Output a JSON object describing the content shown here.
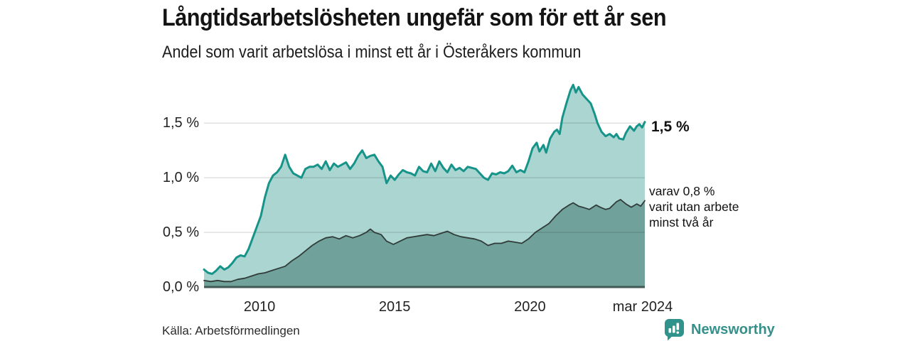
{
  "header": {
    "title": "Långtidsarbetslösheten ungefär som för ett år sen",
    "subtitle": "Andel som varit arbetslösa i minst ett år i Österåkers kommun"
  },
  "annotations": {
    "latest_total": "1,5 %",
    "secondary": "varav 0,8 %\nvarit utan arbete\nminst två år"
  },
  "footer": {
    "source": "Källa: Arbetsförmedlingen",
    "brand": "Newsworthy"
  },
  "colors": {
    "accent_teal": "#17948a",
    "light_fill": "#abd5d0",
    "dark_fill": "#70a19b",
    "dark_line": "#303c3a",
    "axis_line": "#415a56",
    "gridline": "rgba(0,0,0,0.12)",
    "brand_teal": "#2f938c",
    "text": "#161616"
  },
  "chart_data": {
    "type": "area",
    "title": "Långtidsarbetslösheten ungefär som för ett år sen",
    "subtitle": "Andel som varit arbetslösa i minst ett år i Österåkers kommun",
    "xlabel": "",
    "ylabel": "",
    "unit": "%",
    "xlim": [
      2007.95,
      2024.25
    ],
    "ylim": [
      0,
      1.95
    ],
    "grid": "horizontal",
    "legend_position": "none",
    "x_ticks": [
      {
        "label": "2010",
        "x": 2010
      },
      {
        "label": "2015",
        "x": 2015
      },
      {
        "label": "2020",
        "x": 2020
      },
      {
        "label": "mar 2024",
        "x": 2024.17
      }
    ],
    "y_ticks": [
      {
        "label": "0,0 %",
        "value": 0.0
      },
      {
        "label": "0,5 %",
        "value": 0.5
      },
      {
        "label": "1,0 %",
        "value": 1.0
      },
      {
        "label": "1,5 %",
        "value": 1.5
      }
    ],
    "series": [
      {
        "name": "Andel arbetslösa minst ett år",
        "latest_value": 1.5,
        "line_color": "#17948a",
        "fill_color": "#abd5d0",
        "line_width": 3,
        "points": [
          [
            2007.95,
            0.16
          ],
          [
            2008.1,
            0.13
          ],
          [
            2008.25,
            0.12
          ],
          [
            2008.4,
            0.15
          ],
          [
            2008.55,
            0.19
          ],
          [
            2008.7,
            0.16
          ],
          [
            2008.85,
            0.18
          ],
          [
            2009.0,
            0.22
          ],
          [
            2009.15,
            0.27
          ],
          [
            2009.3,
            0.29
          ],
          [
            2009.45,
            0.28
          ],
          [
            2009.6,
            0.35
          ],
          [
            2009.75,
            0.45
          ],
          [
            2009.9,
            0.55
          ],
          [
            2010.05,
            0.65
          ],
          [
            2010.2,
            0.82
          ],
          [
            2010.35,
            0.95
          ],
          [
            2010.5,
            1.02
          ],
          [
            2010.65,
            1.05
          ],
          [
            2010.8,
            1.1
          ],
          [
            2010.95,
            1.21
          ],
          [
            2011.1,
            1.1
          ],
          [
            2011.25,
            1.04
          ],
          [
            2011.4,
            1.02
          ],
          [
            2011.55,
            1.0
          ],
          [
            2011.7,
            1.08
          ],
          [
            2011.85,
            1.1
          ],
          [
            2012.0,
            1.1
          ],
          [
            2012.15,
            1.12
          ],
          [
            2012.3,
            1.08
          ],
          [
            2012.45,
            1.15
          ],
          [
            2012.6,
            1.07
          ],
          [
            2012.75,
            1.13
          ],
          [
            2012.9,
            1.1
          ],
          [
            2013.05,
            1.12
          ],
          [
            2013.2,
            1.14
          ],
          [
            2013.35,
            1.08
          ],
          [
            2013.5,
            1.13
          ],
          [
            2013.65,
            1.2
          ],
          [
            2013.8,
            1.25
          ],
          [
            2013.95,
            1.18
          ],
          [
            2014.1,
            1.2
          ],
          [
            2014.25,
            1.21
          ],
          [
            2014.4,
            1.15
          ],
          [
            2014.55,
            1.1
          ],
          [
            2014.7,
            0.95
          ],
          [
            2014.85,
            1.02
          ],
          [
            2015.0,
            0.98
          ],
          [
            2015.15,
            1.03
          ],
          [
            2015.3,
            1.07
          ],
          [
            2015.45,
            1.05
          ],
          [
            2015.6,
            1.04
          ],
          [
            2015.75,
            1.02
          ],
          [
            2015.9,
            1.1
          ],
          [
            2016.05,
            1.06
          ],
          [
            2016.2,
            1.05
          ],
          [
            2016.35,
            1.13
          ],
          [
            2016.5,
            1.06
          ],
          [
            2016.65,
            1.15
          ],
          [
            2016.8,
            1.09
          ],
          [
            2016.95,
            1.05
          ],
          [
            2017.1,
            1.12
          ],
          [
            2017.25,
            1.07
          ],
          [
            2017.4,
            1.09
          ],
          [
            2017.55,
            1.06
          ],
          [
            2017.7,
            1.1
          ],
          [
            2017.85,
            1.09
          ],
          [
            2018.0,
            1.08
          ],
          [
            2018.15,
            1.04
          ],
          [
            2018.3,
            1.0
          ],
          [
            2018.45,
            0.98
          ],
          [
            2018.6,
            1.04
          ],
          [
            2018.75,
            1.03
          ],
          [
            2018.9,
            1.05
          ],
          [
            2019.05,
            1.04
          ],
          [
            2019.2,
            1.06
          ],
          [
            2019.35,
            1.11
          ],
          [
            2019.5,
            1.05
          ],
          [
            2019.65,
            1.07
          ],
          [
            2019.8,
            1.05
          ],
          [
            2019.95,
            1.15
          ],
          [
            2020.1,
            1.27
          ],
          [
            2020.25,
            1.32
          ],
          [
            2020.35,
            1.24
          ],
          [
            2020.5,
            1.3
          ],
          [
            2020.6,
            1.23
          ],
          [
            2020.75,
            1.36
          ],
          [
            2020.9,
            1.42
          ],
          [
            2021.0,
            1.44
          ],
          [
            2021.1,
            1.4
          ],
          [
            2021.2,
            1.55
          ],
          [
            2021.35,
            1.68
          ],
          [
            2021.5,
            1.8
          ],
          [
            2021.6,
            1.85
          ],
          [
            2021.7,
            1.78
          ],
          [
            2021.8,
            1.83
          ],
          [
            2021.95,
            1.76
          ],
          [
            2022.1,
            1.72
          ],
          [
            2022.25,
            1.68
          ],
          [
            2022.4,
            1.58
          ],
          [
            2022.5,
            1.5
          ],
          [
            2022.65,
            1.42
          ],
          [
            2022.8,
            1.38
          ],
          [
            2022.95,
            1.4
          ],
          [
            2023.1,
            1.37
          ],
          [
            2023.2,
            1.4
          ],
          [
            2023.3,
            1.36
          ],
          [
            2023.45,
            1.35
          ],
          [
            2023.55,
            1.41
          ],
          [
            2023.7,
            1.47
          ],
          [
            2023.85,
            1.43
          ],
          [
            2023.95,
            1.47
          ],
          [
            2024.05,
            1.49
          ],
          [
            2024.15,
            1.46
          ],
          [
            2024.25,
            1.51
          ]
        ]
      },
      {
        "name": "varav arbetslösa minst två år",
        "latest_value": 0.8,
        "line_color": "#303c3a",
        "fill_color": "#70a19b",
        "line_width": 1.8,
        "points": [
          [
            2007.95,
            0.06
          ],
          [
            2008.2,
            0.05
          ],
          [
            2008.45,
            0.06
          ],
          [
            2008.7,
            0.05
          ],
          [
            2008.95,
            0.05
          ],
          [
            2009.2,
            0.07
          ],
          [
            2009.45,
            0.08
          ],
          [
            2009.7,
            0.1
          ],
          [
            2009.95,
            0.12
          ],
          [
            2010.2,
            0.13
          ],
          [
            2010.45,
            0.15
          ],
          [
            2010.7,
            0.17
          ],
          [
            2010.95,
            0.19
          ],
          [
            2011.2,
            0.24
          ],
          [
            2011.45,
            0.28
          ],
          [
            2011.7,
            0.33
          ],
          [
            2011.95,
            0.38
          ],
          [
            2012.2,
            0.42
          ],
          [
            2012.45,
            0.45
          ],
          [
            2012.7,
            0.46
          ],
          [
            2012.95,
            0.44
          ],
          [
            2013.2,
            0.47
          ],
          [
            2013.45,
            0.45
          ],
          [
            2013.7,
            0.47
          ],
          [
            2013.95,
            0.5
          ],
          [
            2014.1,
            0.53
          ],
          [
            2014.25,
            0.5
          ],
          [
            2014.5,
            0.48
          ],
          [
            2014.7,
            0.42
          ],
          [
            2014.95,
            0.39
          ],
          [
            2015.2,
            0.42
          ],
          [
            2015.45,
            0.45
          ],
          [
            2015.7,
            0.46
          ],
          [
            2015.95,
            0.47
          ],
          [
            2016.2,
            0.48
          ],
          [
            2016.45,
            0.47
          ],
          [
            2016.7,
            0.49
          ],
          [
            2016.95,
            0.51
          ],
          [
            2017.2,
            0.48
          ],
          [
            2017.45,
            0.46
          ],
          [
            2017.7,
            0.45
          ],
          [
            2017.95,
            0.44
          ],
          [
            2018.2,
            0.42
          ],
          [
            2018.45,
            0.38
          ],
          [
            2018.7,
            0.4
          ],
          [
            2018.95,
            0.4
          ],
          [
            2019.2,
            0.42
          ],
          [
            2019.45,
            0.41
          ],
          [
            2019.7,
            0.4
          ],
          [
            2019.95,
            0.44
          ],
          [
            2020.2,
            0.5
          ],
          [
            2020.45,
            0.54
          ],
          [
            2020.7,
            0.58
          ],
          [
            2020.95,
            0.65
          ],
          [
            2021.2,
            0.71
          ],
          [
            2021.45,
            0.75
          ],
          [
            2021.6,
            0.77
          ],
          [
            2021.8,
            0.74
          ],
          [
            2021.95,
            0.73
          ],
          [
            2022.2,
            0.71
          ],
          [
            2022.45,
            0.75
          ],
          [
            2022.6,
            0.73
          ],
          [
            2022.8,
            0.71
          ],
          [
            2022.95,
            0.72
          ],
          [
            2023.2,
            0.78
          ],
          [
            2023.35,
            0.8
          ],
          [
            2023.55,
            0.76
          ],
          [
            2023.75,
            0.73
          ],
          [
            2023.95,
            0.76
          ],
          [
            2024.1,
            0.74
          ],
          [
            2024.25,
            0.79
          ]
        ]
      }
    ]
  }
}
